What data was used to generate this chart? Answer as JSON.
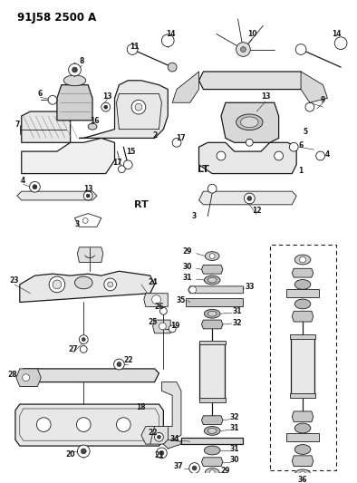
{
  "title": "91J58 2500 A",
  "bg_color": "#ffffff",
  "line_color": "#1a1a1a",
  "fig_width": 3.94,
  "fig_height": 5.33,
  "dpi": 100,
  "label_fontsize": 5.5,
  "title_fontsize": 8.5,
  "rt_label": "RT",
  "lt_label": "LT"
}
